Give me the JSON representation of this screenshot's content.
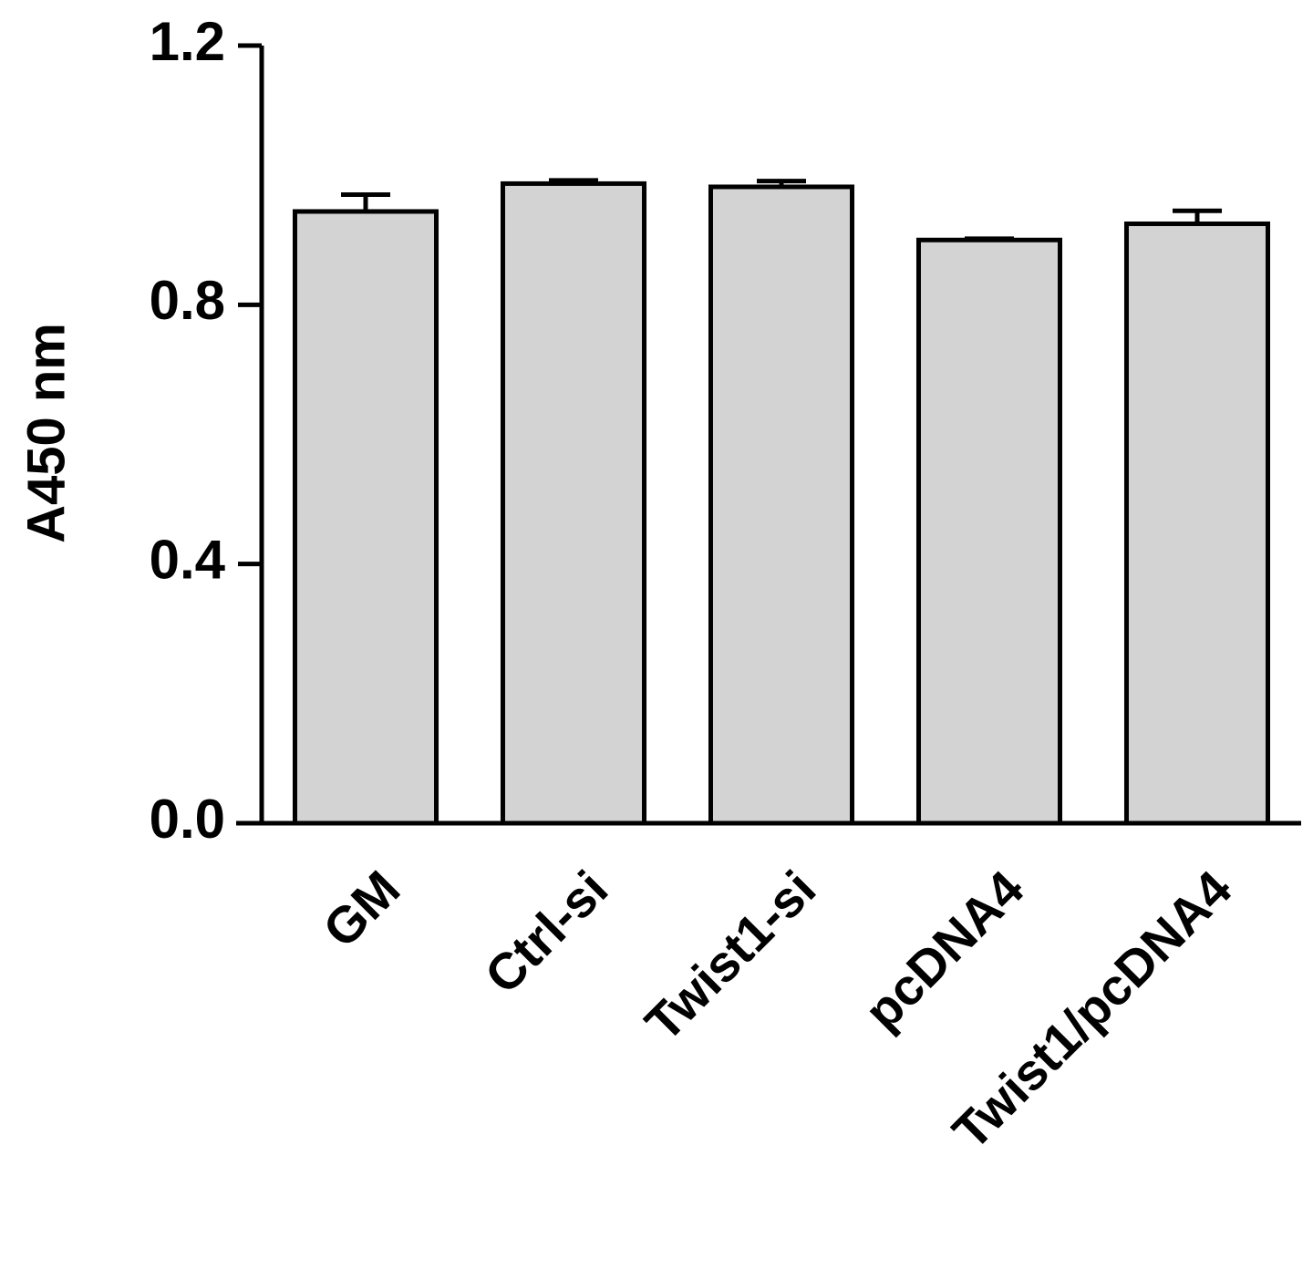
{
  "chart_data": {
    "type": "bar",
    "y_label": "A450 nm",
    "categories": [
      "GM",
      "Ctrl-si",
      "Twist1-si",
      "pcDNA4",
      "Twist1/pcDNA4"
    ],
    "values": [
      0.944,
      0.987,
      0.982,
      0.9,
      0.925
    ],
    "errors": [
      0.026,
      0.005,
      0.009,
      0.002,
      0.02
    ],
    "color": "#d3d3d3",
    "ylim": [
      0,
      1.2
    ],
    "yticks": [
      {
        "value": 0,
        "label": "0.0"
      },
      0.4,
      0.8,
      1.2
    ]
  }
}
